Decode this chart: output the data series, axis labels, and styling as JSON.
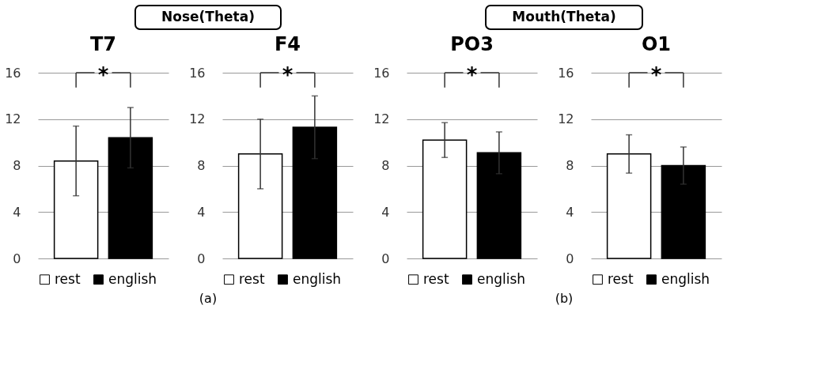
{
  "chart_data": [
    {
      "type": "bar",
      "title": "T7",
      "categories": [
        null
      ],
      "ylim": [
        0,
        16
      ],
      "yticks": [
        0,
        4,
        8,
        12,
        16
      ],
      "grid": "y",
      "legend": "bottom",
      "annotations": [
        "*",
        "Nose(Theta)",
        "(a)"
      ],
      "series": [
        {
          "name": "rest",
          "color": "#ffffff",
          "values": [
            8.4
          ],
          "errors": [
            3.0
          ]
        },
        {
          "name": "english",
          "color": "#000000",
          "values": [
            10.4
          ],
          "errors": [
            2.6
          ]
        }
      ]
    },
    {
      "type": "bar",
      "title": "F4",
      "categories": [
        null
      ],
      "ylim": [
        0,
        16
      ],
      "yticks": [
        0,
        4,
        8,
        12,
        16
      ],
      "grid": "y",
      "legend": "bottom",
      "annotations": [
        "*"
      ],
      "series": [
        {
          "name": "rest",
          "color": "#ffffff",
          "values": [
            9.0
          ],
          "errors": [
            3.0
          ]
        },
        {
          "name": "english",
          "color": "#000000",
          "values": [
            11.3
          ],
          "errors": [
            2.7
          ]
        }
      ]
    },
    {
      "type": "bar",
      "title": "PO3",
      "categories": [
        null
      ],
      "ylim": [
        0,
        16
      ],
      "yticks": [
        0,
        4,
        8,
        12,
        16
      ],
      "grid": "y",
      "legend": "bottom",
      "annotations": [
        "*",
        "Mouth(Theta)",
        "(b)"
      ],
      "series": [
        {
          "name": "rest",
          "color": "#ffffff",
          "values": [
            10.2
          ],
          "errors": [
            1.5
          ]
        },
        {
          "name": "english",
          "color": "#000000",
          "values": [
            9.1
          ],
          "errors": [
            1.8
          ]
        }
      ]
    },
    {
      "type": "bar",
      "title": "O1",
      "categories": [
        null
      ],
      "ylim": [
        0,
        16
      ],
      "yticks": [
        0,
        4,
        8,
        12,
        16
      ],
      "grid": "y",
      "legend": "bottom",
      "annotations": [
        "*"
      ],
      "series": [
        {
          "name": "rest",
          "color": "#ffffff",
          "values": [
            9.0
          ],
          "errors": [
            1.65
          ]
        },
        {
          "name": "english",
          "color": "#000000",
          "values": [
            8.0
          ],
          "errors": [
            1.6
          ]
        }
      ]
    }
  ]
}
